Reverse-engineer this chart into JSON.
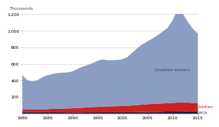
{
  "years": [
    1980,
    1981,
    1982,
    1983,
    1984,
    1985,
    1986,
    1987,
    1988,
    1989,
    1990,
    1991,
    1992,
    1993,
    1994,
    1995,
    1996,
    1997,
    1998,
    1999,
    2000,
    2001,
    2002,
    2003,
    2004,
    2005,
    2006,
    2007,
    2008,
    2009,
    2010,
    2011,
    2012,
    2013,
    2014,
    2015
  ],
  "disabled_workers": [
    420,
    355,
    340,
    350,
    385,
    410,
    420,
    430,
    432,
    435,
    445,
    470,
    495,
    510,
    530,
    555,
    570,
    558,
    555,
    558,
    565,
    590,
    640,
    690,
    730,
    760,
    790,
    828,
    868,
    910,
    1000,
    1130,
    1070,
    975,
    895,
    840
  ],
  "disabled_adult_children": [
    28,
    30,
    32,
    34,
    36,
    38,
    42,
    45,
    47,
    49,
    51,
    54,
    57,
    61,
    64,
    67,
    69,
    71,
    73,
    74,
    76,
    79,
    83,
    87,
    91,
    95,
    97,
    99,
    101,
    103,
    106,
    109,
    111,
    107,
    104,
    101
  ],
  "disabled_widowers": [
    20,
    19,
    18,
    17,
    17,
    16,
    16,
    15,
    15,
    14,
    14,
    14,
    14,
    15,
    15,
    15,
    16,
    16,
    16,
    16,
    16,
    16,
    16,
    17,
    18,
    19,
    20,
    21,
    22,
    23,
    24,
    25,
    26,
    26,
    26,
    26
  ],
  "color_workers": "#8b9dc3",
  "color_adult_children": "#cc2222",
  "color_widowers": "#1a1a4a",
  "background_color": "#ffffff",
  "ylabel": "Thousands",
  "ylim": [
    0,
    1200
  ],
  "yticks": [
    200,
    400,
    600,
    800,
    1000,
    1200
  ],
  "xticks": [
    1980,
    1985,
    1990,
    1995,
    2000,
    2005,
    2010,
    2015
  ],
  "xlim_start": 1980,
  "xlim_end": 2015,
  "label_workers": "Disabled workers",
  "label_adult_children": "Disabled adult children",
  "label_widowers": "Disabled widow(er)s",
  "tick_fontsize": 4.5,
  "label_fontsize": 4.2
}
